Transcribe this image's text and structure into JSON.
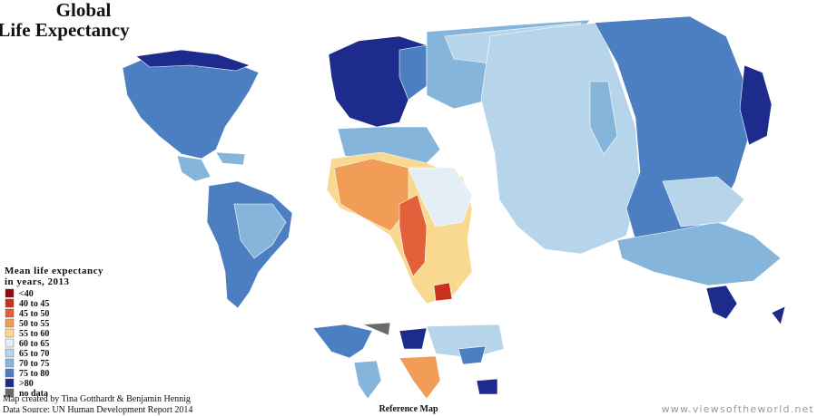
{
  "title": [
    "Global",
    "Life Expectancy"
  ],
  "legend": {
    "title": [
      "Mean life expectancy",
      "in years, 2013"
    ],
    "items": [
      {
        "label": "<40",
        "color": "#8b0d0d"
      },
      {
        "label": "40 to 45",
        "color": "#c8321f"
      },
      {
        "label": "45 to 50",
        "color": "#e2603a"
      },
      {
        "label": "50 to 55",
        "color": "#f29d57"
      },
      {
        "label": "55 to 60",
        "color": "#f9d88f"
      },
      {
        "label": "60 to 65",
        "color": "#e4eef5"
      },
      {
        "label": "65 to 70",
        "color": "#b6d5ea"
      },
      {
        "label": "70 to 75",
        "color": "#86b5dc"
      },
      {
        "label": "75 to 80",
        "color": "#4c7fc1"
      },
      {
        "label": ">80",
        "color": "#1d2b8c"
      },
      {
        "label": "no data",
        "color": "#6b6b6b"
      }
    ]
  },
  "credits": [
    "Map created by Tina Gotthardt & Benjamin Hennig",
    "Data Source: UN Human Development Report 2014"
  ],
  "reference_map_label": "Reference Map",
  "website": "www.viewsoftheworld.net"
}
